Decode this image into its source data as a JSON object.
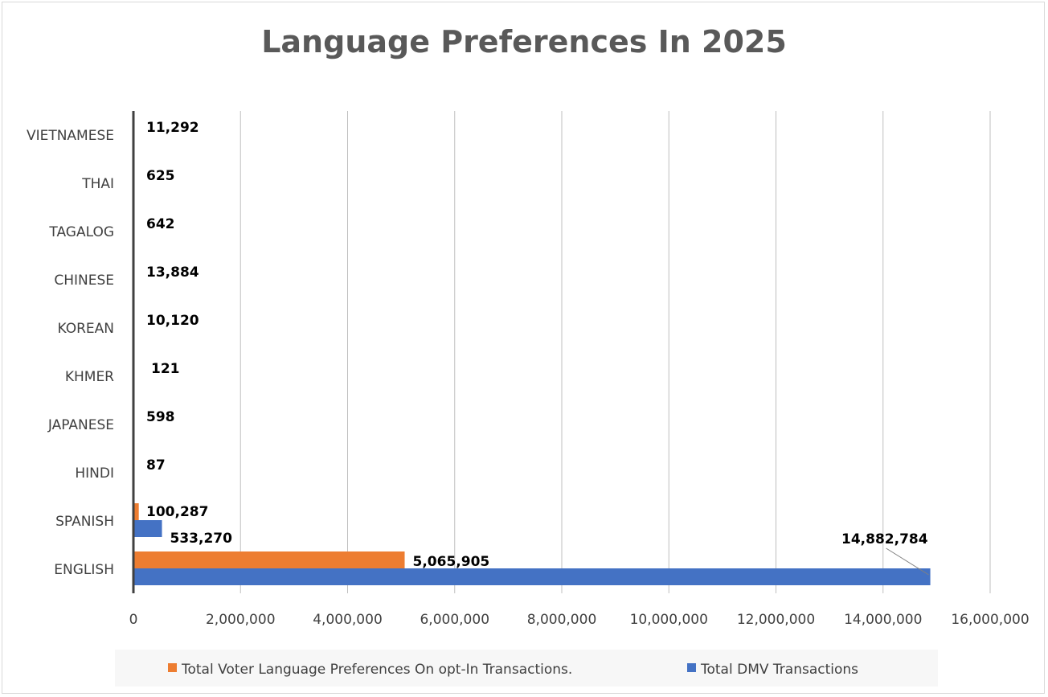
{
  "chart_data": {
    "type": "bar",
    "orientation": "horizontal",
    "title": "Language Preferences In 2025",
    "xlabel": "",
    "ylabel": "",
    "xlim": [
      0,
      16000000
    ],
    "x_ticks": [
      0,
      2000000,
      4000000,
      6000000,
      8000000,
      10000000,
      12000000,
      14000000,
      16000000
    ],
    "x_tick_labels": [
      "0",
      "2,000,000",
      "4,000,000",
      "6,000,000",
      "8,000,000",
      "10,000,000",
      "12,000,000",
      "14,000,000",
      "16,000,000"
    ],
    "grid": "vertical",
    "legend_position": "bottom",
    "categories": [
      "ENGLISH",
      "SPANISH",
      "HINDI",
      "JAPANESE",
      "KHMER",
      "KOREAN",
      "CHINESE",
      "TAGALOG",
      "THAI",
      "VIETNAMESE"
    ],
    "series": [
      {
        "name": "Total Voter Language Preferences On opt-In Transactions.",
        "color": "#ed7d31",
        "values": [
          5065905,
          100287,
          null,
          null,
          null,
          null,
          null,
          null,
          null,
          null
        ],
        "labels": [
          "5,065,905",
          "100,287",
          "",
          "",
          "",
          "",
          "",
          "",
          "",
          ""
        ]
      },
      {
        "name": "Total DMV Transactions",
        "color": "#4472c4",
        "values": [
          14882784,
          533270,
          87,
          598,
          121,
          10120,
          13884,
          642,
          625,
          11292
        ],
        "labels": [
          "14,882,784",
          "533,270",
          "87",
          "598",
          "121",
          "10,120",
          "13,884",
          "642",
          "625",
          "11,292"
        ]
      }
    ]
  }
}
